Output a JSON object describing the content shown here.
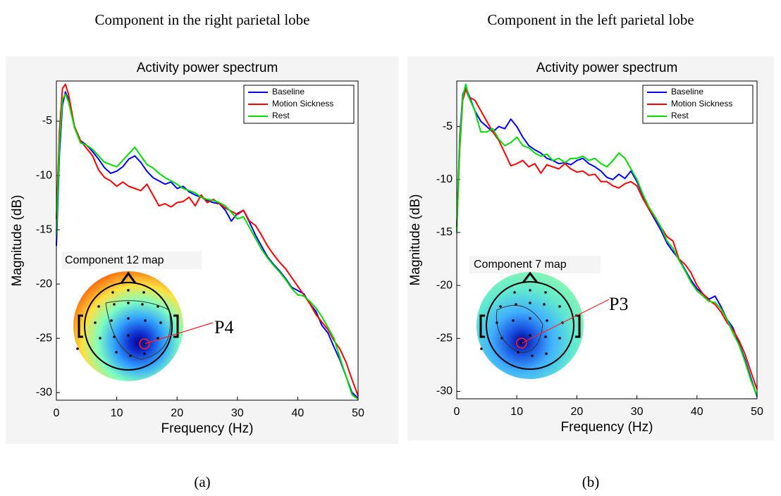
{
  "chart_data": [
    {
      "type": "line",
      "heading": "Component in the right parietal lobe",
      "title": "Activity power spectrum",
      "xlabel": "Frequency (Hz)",
      "ylabel": "Magnitude (dB)",
      "x": [
        0,
        0.5,
        1,
        1.5,
        2,
        3,
        4,
        5,
        6,
        7,
        8,
        9,
        10,
        11,
        12,
        13,
        14,
        15,
        16,
        17,
        18,
        19,
        20,
        21,
        22,
        23,
        24,
        25,
        26,
        27,
        28,
        29,
        30,
        31,
        32,
        33,
        34,
        35,
        36,
        37,
        38,
        39,
        40,
        41,
        42,
        43,
        44,
        45,
        46,
        47,
        48,
        49,
        50
      ],
      "series": [
        {
          "name": "Baseline",
          "color": "#0000ff",
          "values": [
            -16.5,
            -8,
            -3.5,
            -2.3,
            -3,
            -5.5,
            -6.8,
            -7.2,
            -7.8,
            -8.5,
            -9.3,
            -9.8,
            -9.6,
            -9.2,
            -8.5,
            -8.2,
            -8.8,
            -9.6,
            -10.2,
            -10.5,
            -10.8,
            -10.6,
            -11.2,
            -11.0,
            -11.5,
            -11.8,
            -12.0,
            -12.3,
            -12.5,
            -12.6,
            -13.2,
            -14.2,
            -13.5,
            -13.2,
            -14.3,
            -15.5,
            -16.5,
            -17.5,
            -18.2,
            -18.8,
            -19.5,
            -20.3,
            -20.6,
            -20.9,
            -21.8,
            -22.5,
            -23.8,
            -24.5,
            -25.8,
            -27,
            -28.5,
            -30,
            -30.5
          ]
        },
        {
          "name": "Motion Sickness",
          "color": "#ff0000",
          "values": [
            -14,
            -6,
            -2,
            -1.6,
            -2.5,
            -5.5,
            -6.8,
            -7.5,
            -8.2,
            -9.5,
            -10.2,
            -10.5,
            -11.0,
            -10.6,
            -11.0,
            -11.2,
            -11.4,
            -10.8,
            -11.8,
            -12.8,
            -12.6,
            -12.9,
            -12.5,
            -12.4,
            -12.0,
            -12.8,
            -11.8,
            -12.5,
            -12.2,
            -12.6,
            -13.0,
            -13.3,
            -13.6,
            -13.2,
            -14.2,
            -14.6,
            -15.5,
            -16.5,
            -17.3,
            -18.0,
            -18.6,
            -19.4,
            -20.2,
            -21.0,
            -21.8,
            -22.8,
            -23.5,
            -24.2,
            -25.2,
            -26,
            -27.2,
            -28.8,
            -30.3
          ]
        },
        {
          "name": "Rest",
          "color": "#00dd00",
          "values": [
            -15.5,
            -7,
            -3,
            -2.5,
            -3.2,
            -5.6,
            -7,
            -7.2,
            -7.6,
            -8.2,
            -8.8,
            -9.0,
            -9.2,
            -8.6,
            -8.0,
            -7.4,
            -8.2,
            -9.0,
            -9.3,
            -9.8,
            -10.2,
            -10.5,
            -10.8,
            -11.2,
            -11.4,
            -11.6,
            -12.0,
            -12.2,
            -12.3,
            -12.5,
            -12.8,
            -13.4,
            -14.0,
            -13.8,
            -14.8,
            -15.8,
            -16.8,
            -17.6,
            -18.3,
            -18.9,
            -19.6,
            -20.4,
            -21.0,
            -21.1,
            -21.6,
            -22.2,
            -23.0,
            -24.0,
            -25.0,
            -26.8,
            -28.5,
            -30.2,
            -30.6
          ]
        }
      ],
      "xlim": [
        0,
        50
      ],
      "ylim": [
        -30.7,
        -1.3
      ],
      "xticks": [
        0,
        10,
        20,
        30,
        40,
        50
      ],
      "yticks": [
        -30,
        -25,
        -20,
        -15,
        -10,
        -5
      ],
      "legend": "upper right",
      "annotations": [
        "Component 12 map",
        "P4"
      ],
      "caption": "(a)"
    },
    {
      "type": "line",
      "heading": "Component in the left parietal lobe",
      "title": "Activity power spectrum",
      "xlabel": "Frequency (Hz)",
      "ylabel": "Magnitude (dB)",
      "x": [
        0,
        0.5,
        1,
        1.5,
        2,
        3,
        4,
        5,
        6,
        7,
        8,
        9,
        10,
        11,
        12,
        13,
        14,
        15,
        16,
        17,
        18,
        19,
        20,
        21,
        22,
        23,
        24,
        25,
        26,
        27,
        28,
        29,
        30,
        31,
        32,
        33,
        34,
        35,
        36,
        37,
        38,
        39,
        40,
        41,
        42,
        43,
        44,
        45,
        46,
        47,
        48,
        49,
        50
      ],
      "series": [
        {
          "name": "Baseline",
          "color": "#0000ff",
          "values": [
            -14.5,
            -6,
            -2,
            -1.2,
            -2,
            -3.5,
            -4.5,
            -5.0,
            -5.5,
            -5.0,
            -5.2,
            -4.3,
            -5.0,
            -6.0,
            -6.8,
            -7.2,
            -7.5,
            -8.0,
            -8.2,
            -8.5,
            -8.4,
            -8.6,
            -8.2,
            -8.0,
            -8.5,
            -8.8,
            -9.2,
            -9.8,
            -10.0,
            -9.5,
            -9.9,
            -9.2,
            -10.2,
            -11.5,
            -12.8,
            -13.8,
            -14.8,
            -16.0,
            -16.8,
            -17.5,
            -18.5,
            -19.5,
            -20.3,
            -20.8,
            -21.3,
            -21.0,
            -22.0,
            -23.2,
            -24.0,
            -25.5,
            -27,
            -28.8,
            -30.5
          ]
        },
        {
          "name": "Motion Sickness",
          "color": "#ff0000",
          "values": [
            -14.5,
            -7,
            -2.5,
            -1.5,
            -2.2,
            -2.5,
            -3.5,
            -4.5,
            -5.5,
            -6.3,
            -7.5,
            -8.7,
            -8.5,
            -8.2,
            -8.8,
            -8.5,
            -9.4,
            -8.6,
            -8.8,
            -9.0,
            -8.5,
            -9.0,
            -9.3,
            -9.2,
            -9.6,
            -9.5,
            -10.2,
            -10.2,
            -10.6,
            -10.8,
            -10.4,
            -10.2,
            -10.6,
            -11.8,
            -12.8,
            -13.6,
            -14.5,
            -15.4,
            -15.8,
            -17.5,
            -18.0,
            -18.8,
            -20.0,
            -20.8,
            -21.4,
            -21.8,
            -22.5,
            -23.5,
            -24.2,
            -25.2,
            -26.5,
            -28.2,
            -29.8
          ]
        },
        {
          "name": "Rest",
          "color": "#00dd00",
          "values": [
            -15,
            -6.5,
            -2.2,
            -1.0,
            -2.2,
            -3.5,
            -5.5,
            -5.5,
            -5.2,
            -6.2,
            -6.8,
            -6.5,
            -6.0,
            -6.8,
            -7.0,
            -7.5,
            -7.8,
            -7.6,
            -8.2,
            -8.0,
            -8.4,
            -8.0,
            -8.0,
            -7.8,
            -8.2,
            -8.0,
            -8.5,
            -8.8,
            -8.2,
            -7.5,
            -8.0,
            -9.0,
            -10.0,
            -11.4,
            -12.6,
            -13.5,
            -14.5,
            -15.8,
            -16.5,
            -17.6,
            -18.6,
            -19.7,
            -20.5,
            -21.0,
            -21.5,
            -21.6,
            -22.2,
            -23.2,
            -24.5,
            -25.6,
            -27.2,
            -29.0,
            -30.4
          ]
        }
      ],
      "xlim": [
        0,
        50
      ],
      "ylim": [
        -30.7,
        -0.7
      ],
      "xticks": [
        0,
        10,
        20,
        30,
        40,
        50
      ],
      "yticks": [
        -30,
        -25,
        -20,
        -15,
        -10,
        -5
      ],
      "legend": "upper right",
      "annotations": [
        "Component 7 map",
        "P3"
      ],
      "caption": "(b)"
    }
  ]
}
